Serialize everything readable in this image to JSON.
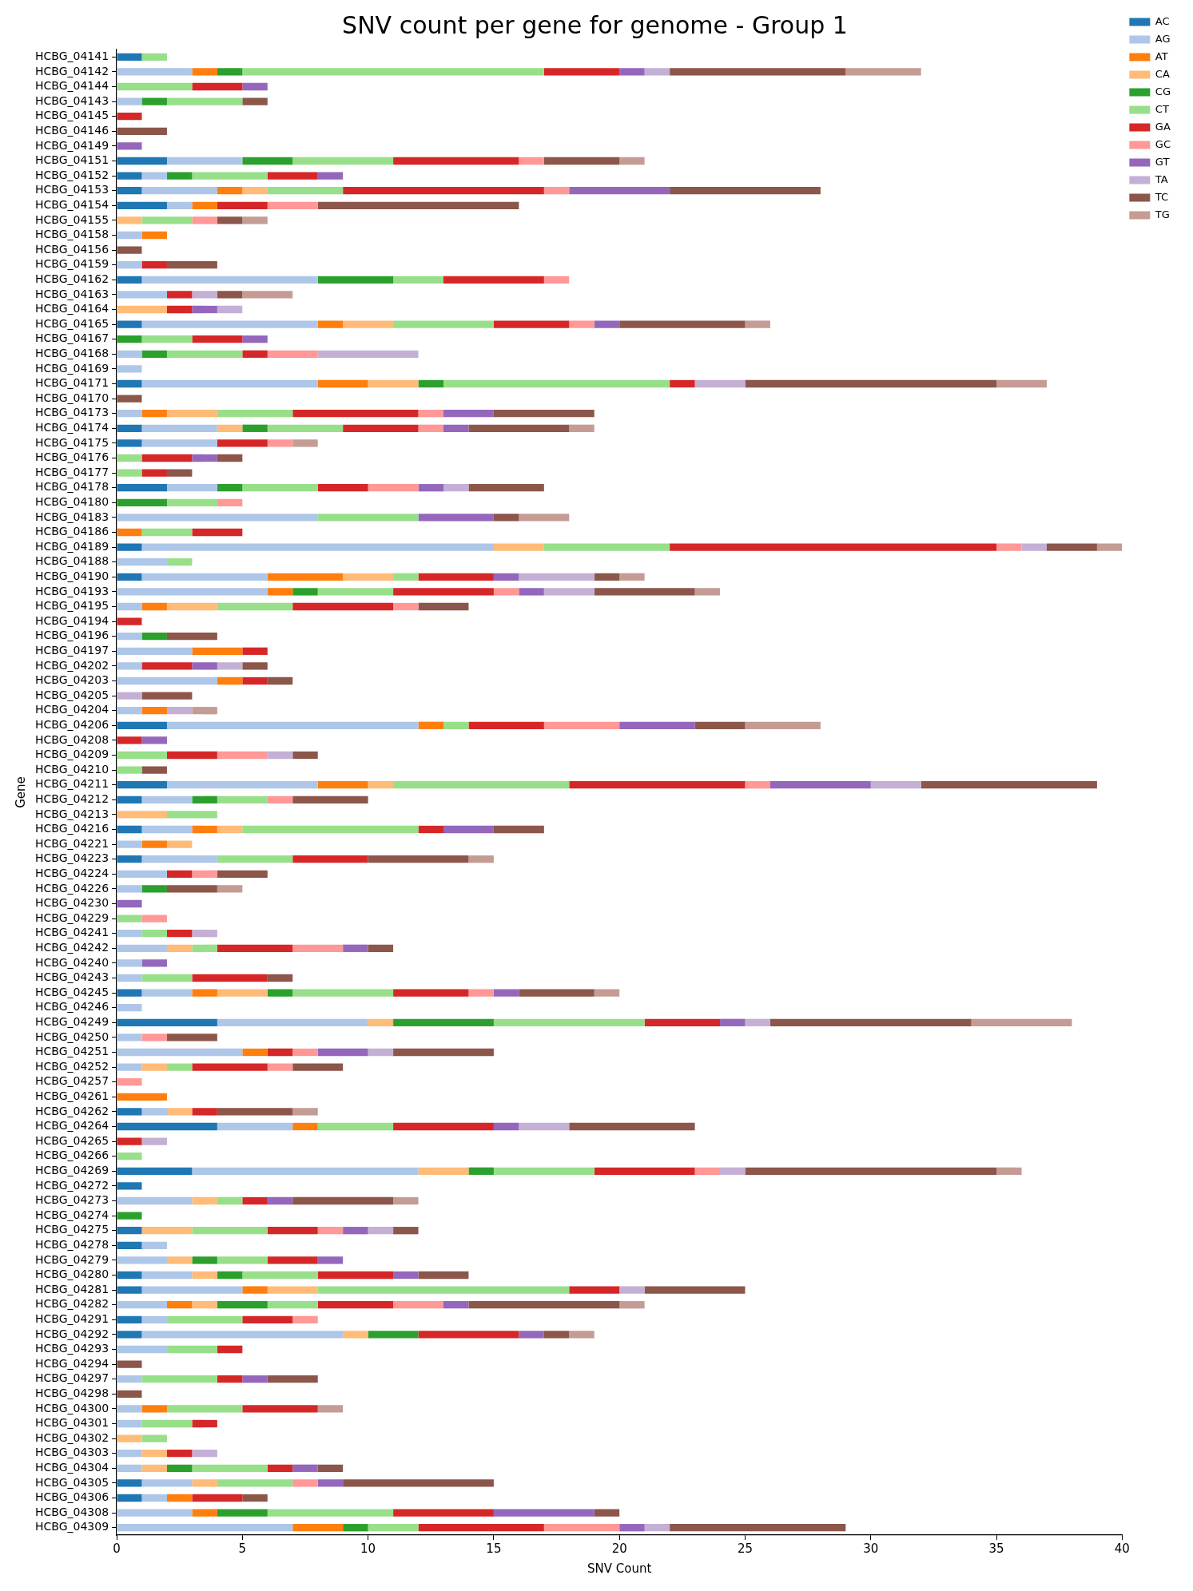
{
  "chart_data": {
    "type": "bar",
    "orientation": "horizontal",
    "stacked": true,
    "title": "SNV count per gene for genome - Group 1",
    "xlabel": "SNV Count",
    "ylabel": "Gene",
    "legend": "top right",
    "grid": false,
    "xlim": [
      0,
      40
    ],
    "xticks": [
      0,
      5,
      10,
      15,
      20,
      25,
      30,
      35,
      40
    ],
    "categories": [
      "HCBG_04141",
      "HCBG_04142",
      "HCBG_04144",
      "HCBG_04143",
      "HCBG_04145",
      "HCBG_04146",
      "HCBG_04149",
      "HCBG_04151",
      "HCBG_04152",
      "HCBG_04153",
      "HCBG_04154",
      "HCBG_04155",
      "HCBG_04158",
      "HCBG_04156",
      "HCBG_04159",
      "HCBG_04162",
      "HCBG_04163",
      "HCBG_04164",
      "HCBG_04165",
      "HCBG_04167",
      "HCBG_04168",
      "HCBG_04169",
      "HCBG_04171",
      "HCBG_04170",
      "HCBG_04173",
      "HCBG_04174",
      "HCBG_04175",
      "HCBG_04176",
      "HCBG_04177",
      "HCBG_04178",
      "HCBG_04180",
      "HCBG_04183",
      "HCBG_04186",
      "HCBG_04189",
      "HCBG_04188",
      "HCBG_04190",
      "HCBG_04193",
      "HCBG_04195",
      "HCBG_04194",
      "HCBG_04196",
      "HCBG_04197",
      "HCBG_04202",
      "HCBG_04203",
      "HCBG_04205",
      "HCBG_04204",
      "HCBG_04206",
      "HCBG_04208",
      "HCBG_04209",
      "HCBG_04210",
      "HCBG_04211",
      "HCBG_04212",
      "HCBG_04213",
      "HCBG_04216",
      "HCBG_04221",
      "HCBG_04223",
      "HCBG_04224",
      "HCBG_04226",
      "HCBG_04230",
      "HCBG_04229",
      "HCBG_04241",
      "HCBG_04242",
      "HCBG_04240",
      "HCBG_04243",
      "HCBG_04245",
      "HCBG_04246",
      "HCBG_04249",
      "HCBG_04250",
      "HCBG_04251",
      "HCBG_04252",
      "HCBG_04257",
      "HCBG_04261",
      "HCBG_04262",
      "HCBG_04264",
      "HCBG_04265",
      "HCBG_04266",
      "HCBG_04269",
      "HCBG_04272",
      "HCBG_04273",
      "HCBG_04274",
      "HCBG_04275",
      "HCBG_04278",
      "HCBG_04279",
      "HCBG_04280",
      "HCBG_04281",
      "HCBG_04282",
      "HCBG_04291",
      "HCBG_04292",
      "HCBG_04293",
      "HCBG_04294",
      "HCBG_04297",
      "HCBG_04298",
      "HCBG_04300",
      "HCBG_04301",
      "HCBG_04302",
      "HCBG_04303",
      "HCBG_04304",
      "HCBG_04305",
      "HCBG_04306",
      "HCBG_04308",
      "HCBG_04309"
    ],
    "series": [
      {
        "name": "AC",
        "color": "#1f77b4",
        "values": [
          1,
          null,
          null,
          null,
          null,
          null,
          null,
          2,
          1,
          1,
          2,
          null,
          null,
          null,
          null,
          1,
          null,
          null,
          1,
          null,
          null,
          null,
          1,
          null,
          null,
          1,
          1,
          null,
          null,
          2,
          null,
          null,
          null,
          1,
          null,
          1,
          null,
          null,
          null,
          null,
          null,
          null,
          null,
          null,
          null,
          2,
          null,
          null,
          null,
          2,
          1,
          null,
          1,
          null,
          1,
          null,
          null,
          null,
          null,
          null,
          null,
          null,
          null,
          1,
          null,
          4,
          null,
          null,
          null,
          null,
          null,
          1,
          4,
          null,
          null,
          3,
          1,
          null,
          null,
          1,
          1,
          null,
          1,
          1,
          null,
          1,
          1,
          null,
          null,
          null,
          null,
          null,
          null,
          null,
          null,
          null,
          1,
          1,
          null,
          null
        ]
      },
      {
        "name": "AG",
        "color": "#aec7e8",
        "values": [
          null,
          3,
          null,
          1,
          null,
          null,
          null,
          3,
          1,
          3,
          1,
          null,
          1,
          null,
          1,
          7,
          2,
          null,
          7,
          null,
          1,
          1,
          7,
          null,
          1,
          3,
          3,
          null,
          null,
          2,
          null,
          8,
          null,
          14,
          2,
          5,
          6,
          1,
          null,
          1,
          3,
          1,
          4,
          null,
          1,
          10,
          null,
          null,
          null,
          6,
          2,
          null,
          2,
          1,
          3,
          2,
          1,
          null,
          null,
          1,
          2,
          1,
          1,
          2,
          1,
          6,
          1,
          5,
          1,
          null,
          null,
          1,
          3,
          null,
          null,
          9,
          null,
          3,
          null,
          null,
          1,
          2,
          2,
          4,
          2,
          1,
          8,
          2,
          null,
          1,
          null,
          1,
          1,
          null,
          1,
          1,
          2,
          1,
          3,
          7
        ]
      },
      {
        "name": "AT",
        "color": "#ff7f0e",
        "values": [
          null,
          1,
          null,
          null,
          null,
          null,
          null,
          null,
          null,
          1,
          1,
          null,
          1,
          null,
          null,
          null,
          null,
          null,
          1,
          null,
          null,
          null,
          2,
          null,
          1,
          null,
          null,
          null,
          null,
          null,
          null,
          null,
          1,
          null,
          null,
          3,
          1,
          1,
          null,
          null,
          2,
          null,
          1,
          null,
          1,
          1,
          null,
          null,
          null,
          2,
          null,
          null,
          1,
          1,
          null,
          null,
          null,
          null,
          null,
          null,
          null,
          null,
          null,
          1,
          null,
          null,
          null,
          1,
          null,
          null,
          2,
          null,
          1,
          null,
          null,
          null,
          null,
          null,
          null,
          null,
          null,
          null,
          null,
          1,
          1,
          null,
          null,
          null,
          null,
          null,
          null,
          1,
          null,
          null,
          null,
          null,
          null,
          1,
          1,
          2
        ]
      },
      {
        "name": "CA",
        "color": "#ffbb78",
        "values": [
          null,
          null,
          null,
          null,
          null,
          null,
          null,
          null,
          null,
          1,
          null,
          1,
          null,
          null,
          null,
          null,
          null,
          2,
          2,
          null,
          null,
          null,
          2,
          null,
          2,
          1,
          null,
          null,
          null,
          null,
          null,
          null,
          null,
          2,
          null,
          2,
          null,
          2,
          null,
          null,
          null,
          null,
          null,
          null,
          null,
          null,
          null,
          null,
          null,
          1,
          null,
          2,
          1,
          1,
          null,
          null,
          null,
          null,
          null,
          null,
          1,
          null,
          null,
          2,
          null,
          1,
          null,
          null,
          1,
          null,
          null,
          1,
          null,
          null,
          null,
          2,
          null,
          1,
          null,
          2,
          null,
          1,
          1,
          2,
          1,
          null,
          1,
          null,
          null,
          null,
          null,
          null,
          null,
          1,
          1,
          1,
          1,
          null,
          null,
          null
        ]
      },
      {
        "name": "CG",
        "color": "#2ca02c",
        "values": [
          null,
          1,
          null,
          1,
          null,
          null,
          null,
          2,
          1,
          null,
          null,
          null,
          null,
          null,
          null,
          3,
          null,
          null,
          null,
          1,
          1,
          null,
          1,
          null,
          null,
          1,
          null,
          null,
          null,
          1,
          2,
          null,
          null,
          null,
          null,
          null,
          1,
          null,
          null,
          1,
          null,
          null,
          null,
          null,
          null,
          null,
          null,
          null,
          null,
          null,
          1,
          null,
          null,
          null,
          null,
          null,
          1,
          null,
          null,
          null,
          null,
          null,
          null,
          1,
          null,
          4,
          null,
          null,
          null,
          null,
          null,
          null,
          null,
          null,
          null,
          1,
          null,
          null,
          1,
          null,
          null,
          1,
          1,
          null,
          2,
          null,
          2,
          null,
          null,
          null,
          null,
          null,
          null,
          null,
          null,
          1,
          null,
          null,
          2,
          1
        ]
      },
      {
        "name": "CT",
        "color": "#98df8a",
        "values": [
          1,
          12,
          3,
          3,
          null,
          null,
          null,
          4,
          3,
          3,
          null,
          2,
          null,
          null,
          null,
          2,
          null,
          null,
          4,
          2,
          3,
          null,
          9,
          null,
          3,
          3,
          null,
          1,
          1,
          3,
          2,
          4,
          2,
          5,
          1,
          1,
          3,
          3,
          null,
          null,
          null,
          null,
          null,
          null,
          null,
          1,
          null,
          2,
          1,
          7,
          2,
          2,
          7,
          null,
          3,
          null,
          null,
          null,
          1,
          1,
          1,
          null,
          2,
          4,
          null,
          6,
          null,
          null,
          1,
          null,
          null,
          null,
          3,
          null,
          1,
          4,
          null,
          1,
          null,
          3,
          null,
          2,
          3,
          10,
          2,
          3,
          null,
          2,
          null,
          3,
          null,
          3,
          2,
          1,
          null,
          3,
          3,
          null,
          5,
          2
        ]
      },
      {
        "name": "GA",
        "color": "#d62728",
        "values": [
          null,
          3,
          2,
          null,
          1,
          null,
          null,
          5,
          2,
          8,
          2,
          null,
          null,
          null,
          1,
          4,
          1,
          1,
          3,
          2,
          1,
          null,
          1,
          null,
          5,
          3,
          2,
          2,
          1,
          2,
          null,
          null,
          2,
          13,
          null,
          3,
          4,
          4,
          1,
          null,
          1,
          2,
          1,
          null,
          null,
          3,
          1,
          2,
          null,
          7,
          null,
          null,
          1,
          null,
          3,
          1,
          null,
          null,
          null,
          1,
          3,
          null,
          3,
          3,
          null,
          3,
          null,
          1,
          3,
          null,
          null,
          1,
          4,
          1,
          null,
          4,
          null,
          1,
          null,
          2,
          null,
          2,
          3,
          2,
          3,
          2,
          4,
          1,
          null,
          1,
          null,
          3,
          1,
          null,
          1,
          1,
          null,
          2,
          4,
          5
        ]
      },
      {
        "name": "GC",
        "color": "#ff9896",
        "values": [
          null,
          null,
          null,
          null,
          null,
          null,
          null,
          1,
          null,
          1,
          2,
          1,
          null,
          null,
          null,
          1,
          null,
          null,
          1,
          null,
          2,
          null,
          null,
          null,
          1,
          1,
          1,
          null,
          null,
          2,
          1,
          null,
          null,
          1,
          null,
          null,
          1,
          1,
          null,
          null,
          null,
          null,
          null,
          null,
          null,
          3,
          null,
          2,
          null,
          1,
          1,
          null,
          null,
          null,
          null,
          1,
          null,
          null,
          1,
          null,
          2,
          null,
          null,
          1,
          null,
          null,
          1,
          1,
          1,
          1,
          null,
          null,
          null,
          null,
          null,
          1,
          null,
          null,
          null,
          1,
          null,
          null,
          null,
          null,
          2,
          1,
          null,
          null,
          null,
          null,
          null,
          null,
          null,
          null,
          null,
          null,
          1,
          null,
          null,
          3
        ]
      },
      {
        "name": "GT",
        "color": "#9467bd",
        "values": [
          null,
          1,
          1,
          null,
          null,
          null,
          1,
          null,
          1,
          4,
          null,
          null,
          null,
          null,
          null,
          null,
          null,
          1,
          1,
          1,
          null,
          null,
          null,
          null,
          2,
          1,
          null,
          1,
          null,
          1,
          null,
          3,
          null,
          null,
          null,
          1,
          1,
          null,
          null,
          null,
          null,
          1,
          null,
          null,
          null,
          3,
          1,
          null,
          null,
          4,
          null,
          null,
          2,
          null,
          null,
          null,
          null,
          1,
          null,
          null,
          1,
          1,
          null,
          1,
          null,
          1,
          null,
          2,
          null,
          null,
          null,
          null,
          1,
          null,
          null,
          null,
          null,
          1,
          null,
          1,
          null,
          1,
          1,
          null,
          1,
          null,
          1,
          null,
          null,
          1,
          null,
          null,
          null,
          null,
          null,
          1,
          1,
          null,
          4,
          1
        ]
      },
      {
        "name": "TA",
        "color": "#c5b0d5",
        "values": [
          null,
          1,
          null,
          null,
          null,
          null,
          null,
          null,
          null,
          null,
          null,
          null,
          null,
          null,
          null,
          null,
          1,
          1,
          null,
          null,
          4,
          null,
          2,
          null,
          null,
          null,
          null,
          null,
          null,
          1,
          null,
          null,
          null,
          1,
          null,
          3,
          2,
          null,
          null,
          null,
          null,
          1,
          null,
          1,
          1,
          null,
          null,
          1,
          null,
          2,
          null,
          null,
          null,
          null,
          null,
          null,
          null,
          null,
          null,
          1,
          null,
          null,
          null,
          null,
          null,
          1,
          null,
          1,
          null,
          null,
          null,
          null,
          2,
          1,
          null,
          1,
          null,
          null,
          null,
          1,
          null,
          null,
          null,
          1,
          null,
          null,
          null,
          null,
          null,
          null,
          null,
          null,
          null,
          null,
          1,
          null,
          null,
          null,
          null,
          1
        ]
      },
      {
        "name": "TC",
        "color": "#8c564b",
        "values": [
          null,
          7,
          null,
          1,
          null,
          2,
          null,
          3,
          null,
          6,
          8,
          1,
          null,
          1,
          2,
          null,
          1,
          null,
          5,
          null,
          null,
          null,
          10,
          1,
          4,
          4,
          null,
          1,
          1,
          3,
          null,
          1,
          null,
          2,
          null,
          1,
          4,
          2,
          null,
          2,
          null,
          1,
          1,
          2,
          null,
          2,
          null,
          1,
          1,
          7,
          3,
          null,
          2,
          null,
          4,
          2,
          2,
          null,
          null,
          null,
          1,
          null,
          1,
          3,
          null,
          8,
          2,
          4,
          2,
          null,
          null,
          3,
          5,
          null,
          null,
          10,
          null,
          4,
          null,
          1,
          null,
          null,
          2,
          4,
          6,
          null,
          1,
          null,
          1,
          2,
          1,
          null,
          null,
          null,
          null,
          1,
          6,
          1,
          1,
          7
        ]
      },
      {
        "name": "TG",
        "color": "#c49c94",
        "values": [
          null,
          3,
          null,
          null,
          null,
          null,
          null,
          1,
          null,
          null,
          null,
          1,
          null,
          null,
          null,
          null,
          2,
          null,
          1,
          null,
          null,
          null,
          2,
          null,
          null,
          1,
          1,
          null,
          null,
          null,
          null,
          2,
          null,
          1,
          null,
          1,
          1,
          null,
          null,
          null,
          null,
          null,
          null,
          null,
          1,
          3,
          null,
          null,
          null,
          null,
          null,
          null,
          null,
          null,
          1,
          null,
          1,
          null,
          null,
          null,
          null,
          null,
          null,
          1,
          null,
          4,
          null,
          null,
          null,
          null,
          null,
          1,
          null,
          null,
          null,
          1,
          null,
          1,
          null,
          null,
          null,
          null,
          null,
          null,
          1,
          null,
          1,
          null,
          null,
          null,
          null,
          1,
          null,
          null,
          null,
          null,
          null,
          null,
          null,
          null
        ]
      }
    ]
  }
}
